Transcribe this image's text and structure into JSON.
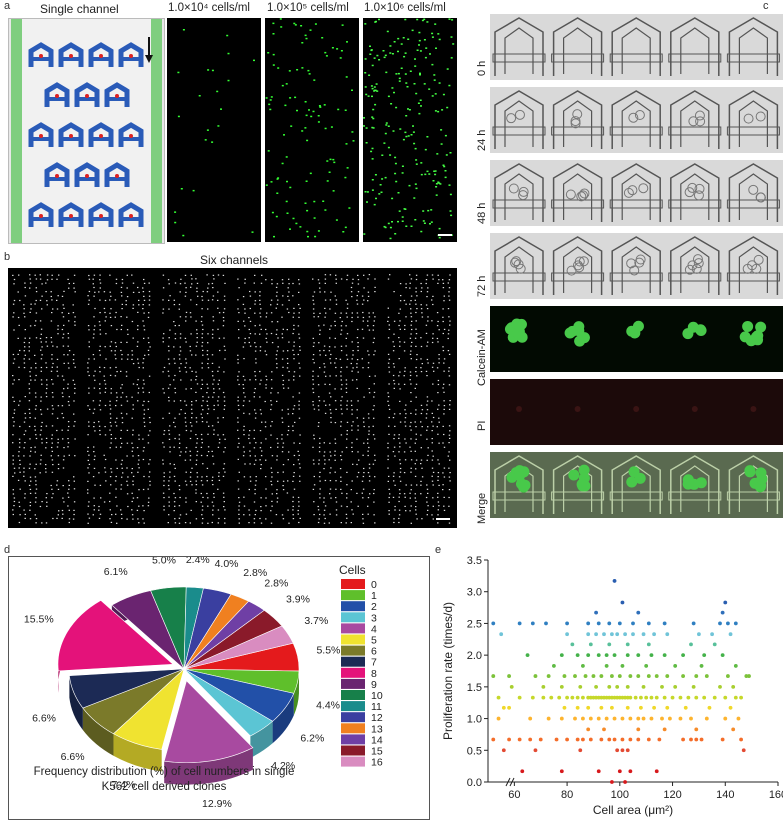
{
  "panel_labels": {
    "a": "a",
    "b": "b",
    "c": "c",
    "d": "d",
    "e": "e"
  },
  "panel_a": {
    "title_single": "Single channel",
    "densities": [
      "1.0×10⁴ cells/ml",
      "1.0×10⁵ cells/ml",
      "1.0×10⁶ cells/ml"
    ]
  },
  "panel_b": {
    "title": "Six channels"
  },
  "panel_c": {
    "rows": [
      "0 h",
      "24 h",
      "48 h",
      "72 h",
      "Calcein-AM",
      "PI",
      "Merge"
    ],
    "colors": {
      "bright": "#d9d9d9",
      "green": "#48c94a",
      "pi": "#1c0a0a",
      "merge_bg": "#5a6a50"
    }
  },
  "chart_data": [
    {
      "type": "pie",
      "caption": "Frequency distribution (%) of cell numbers in single K562 cell derived clones",
      "legend_title": "Cells",
      "categories": [
        "0",
        "1",
        "2",
        "3",
        "4",
        "5",
        "6",
        "7",
        "8",
        "9",
        "10",
        "11",
        "12",
        "13",
        "14",
        "15",
        "16"
      ],
      "values": [
        5.5,
        4.4,
        6.2,
        4.2,
        12.9,
        7.4,
        6.6,
        6.6,
        15.5,
        6.1,
        5.0,
        2.4,
        4.0,
        2.8,
        2.8,
        3.9,
        3.7
      ],
      "labels": [
        "5.5%",
        "4.4%",
        "6.2%",
        "4.2%",
        "12.9%",
        "7.4%",
        "6.6%",
        "6.6%",
        "15.5%",
        "6.1%",
        "5.0%",
        "2.4%",
        "4.0%",
        "2.8%",
        "2.8%",
        "3.9%",
        "3.7%"
      ],
      "colors": [
        "#e41a1c",
        "#5fbf2b",
        "#2250a8",
        "#5bc5d4",
        "#a84aa0",
        "#f0e330",
        "#7b7a2a",
        "#1c2a55",
        "#e4127a",
        "#6a2470",
        "#17804a",
        "#1a8c8c",
        "#3a3fa0",
        "#f08020",
        "#6f3fa5",
        "#8a1a2a",
        "#d98cc0"
      ]
    },
    {
      "type": "scatter",
      "xlabel": "Cell area (μm²)",
      "ylabel": "Proliferation rate (times/d)",
      "xlim": [
        50,
        160
      ],
      "ylim": [
        0,
        3.5
      ],
      "xticks": [
        "60",
        "80",
        "100",
        "120",
        "140",
        "160"
      ],
      "yticks": [
        "0.0",
        "0.5",
        "1.0",
        "1.5",
        "2.0",
        "2.5",
        "3.0",
        "3.5"
      ],
      "level_colors": {
        "0.00": "#d7191c",
        "0.17": "#d7191c",
        "0.50": "#e34a33",
        "0.67": "#f46d2a",
        "0.83": "#f68b29",
        "1.00": "#fdb42f",
        "1.17": "#f0d82a",
        "1.33": "#c6d82a",
        "1.50": "#a8cf2f",
        "1.67": "#7cc23a",
        "1.83": "#5fbb44",
        "2.00": "#44b24a",
        "2.17": "#58c09a",
        "2.33": "#70c4d8",
        "2.50": "#2f7fc1",
        "2.67": "#2f6fba",
        "2.83": "#2a5eb0",
        "3.17": "#2a5eb0"
      },
      "points": [
        [
          97,
          0.0
        ],
        [
          102,
          0.0
        ],
        [
          63,
          0.17
        ],
        [
          78,
          0.17
        ],
        [
          92,
          0.17
        ],
        [
          100,
          0.17
        ],
        [
          104,
          0.17
        ],
        [
          114,
          0.17
        ],
        [
          56,
          0.5
        ],
        [
          68,
          0.5
        ],
        [
          85,
          0.5
        ],
        [
          99,
          0.5
        ],
        [
          101,
          0.5
        ],
        [
          103,
          0.5
        ],
        [
          147,
          0.5
        ],
        [
          52,
          0.67
        ],
        [
          58,
          0.67
        ],
        [
          62,
          0.67
        ],
        [
          66,
          0.67
        ],
        [
          70,
          0.67
        ],
        [
          76,
          0.67
        ],
        [
          80,
          0.67
        ],
        [
          84,
          0.67
        ],
        [
          86,
          0.67
        ],
        [
          89,
          0.67
        ],
        [
          93,
          0.67
        ],
        [
          96,
          0.67
        ],
        [
          98,
          0.67
        ],
        [
          101,
          0.67
        ],
        [
          104,
          0.67
        ],
        [
          107,
          0.67
        ],
        [
          111,
          0.67
        ],
        [
          115,
          0.67
        ],
        [
          124,
          0.67
        ],
        [
          127,
          0.67
        ],
        [
          129,
          0.67
        ],
        [
          131,
          0.67
        ],
        [
          139,
          0.67
        ],
        [
          146,
          0.67
        ],
        [
          88,
          0.83
        ],
        [
          94,
          0.83
        ],
        [
          107,
          0.83
        ],
        [
          117,
          0.83
        ],
        [
          129,
          0.83
        ],
        [
          143,
          0.83
        ],
        [
          54,
          1.0
        ],
        [
          66,
          1.0
        ],
        [
          73,
          1.0
        ],
        [
          78,
          1.0
        ],
        [
          83,
          1.0
        ],
        [
          86,
          1.0
        ],
        [
          89,
          1.0
        ],
        [
          92,
          1.0
        ],
        [
          95,
          1.0
        ],
        [
          98,
          1.0
        ],
        [
          101,
          1.0
        ],
        [
          104,
          1.0
        ],
        [
          107,
          1.0
        ],
        [
          109,
          1.0
        ],
        [
          112,
          1.0
        ],
        [
          116,
          1.0
        ],
        [
          119,
          1.0
        ],
        [
          123,
          1.0
        ],
        [
          127,
          1.0
        ],
        [
          133,
          1.0
        ],
        [
          140,
          1.0
        ],
        [
          145,
          1.0
        ],
        [
          56,
          1.17
        ],
        [
          58,
          1.17
        ],
        [
          79,
          1.17
        ],
        [
          84,
          1.17
        ],
        [
          88,
          1.17
        ],
        [
          93,
          1.17
        ],
        [
          97,
          1.17
        ],
        [
          103,
          1.17
        ],
        [
          108,
          1.17
        ],
        [
          113,
          1.17
        ],
        [
          118,
          1.17
        ],
        [
          125,
          1.17
        ],
        [
          134,
          1.17
        ],
        [
          142,
          1.17
        ],
        [
          54,
          1.33
        ],
        [
          62,
          1.33
        ],
        [
          67,
          1.33
        ],
        [
          71,
          1.33
        ],
        [
          74,
          1.33
        ],
        [
          77,
          1.33
        ],
        [
          80,
          1.33
        ],
        [
          82,
          1.33
        ],
        [
          84,
          1.33
        ],
        [
          86,
          1.33
        ],
        [
          88,
          1.33
        ],
        [
          89,
          1.33
        ],
        [
          90,
          1.33
        ],
        [
          91,
          1.33
        ],
        [
          92,
          1.33
        ],
        [
          93,
          1.33
        ],
        [
          94,
          1.33
        ],
        [
          95,
          1.33
        ],
        [
          96,
          1.33
        ],
        [
          97,
          1.33
        ],
        [
          98,
          1.33
        ],
        [
          99,
          1.33
        ],
        [
          100,
          1.33
        ],
        [
          101,
          1.33
        ],
        [
          102,
          1.33
        ],
        [
          103,
          1.33
        ],
        [
          104,
          1.33
        ],
        [
          106,
          1.33
        ],
        [
          108,
          1.33
        ],
        [
          110,
          1.33
        ],
        [
          112,
          1.33
        ],
        [
          114,
          1.33
        ],
        [
          117,
          1.33
        ],
        [
          120,
          1.33
        ],
        [
          123,
          1.33
        ],
        [
          126,
          1.33
        ],
        [
          129,
          1.33
        ],
        [
          132,
          1.33
        ],
        [
          136,
          1.33
        ],
        [
          140,
          1.33
        ],
        [
          144,
          1.33
        ],
        [
          146,
          1.33
        ],
        [
          59,
          1.5
        ],
        [
          71,
          1.5
        ],
        [
          78,
          1.5
        ],
        [
          85,
          1.5
        ],
        [
          91,
          1.5
        ],
        [
          96,
          1.5
        ],
        [
          99,
          1.5
        ],
        [
          103,
          1.5
        ],
        [
          109,
          1.5
        ],
        [
          116,
          1.5
        ],
        [
          121,
          1.5
        ],
        [
          128,
          1.5
        ],
        [
          138,
          1.5
        ],
        [
          143,
          1.5
        ],
        [
          52,
          1.67
        ],
        [
          58,
          1.67
        ],
        [
          68,
          1.67
        ],
        [
          73,
          1.67
        ],
        [
          79,
          1.67
        ],
        [
          83,
          1.67
        ],
        [
          87,
          1.67
        ],
        [
          90,
          1.67
        ],
        [
          93,
          1.67
        ],
        [
          97,
          1.67
        ],
        [
          100,
          1.67
        ],
        [
          104,
          1.67
        ],
        [
          107,
          1.67
        ],
        [
          111,
          1.67
        ],
        [
          114,
          1.67
        ],
        [
          118,
          1.67
        ],
        [
          124,
          1.67
        ],
        [
          129,
          1.67
        ],
        [
          133,
          1.67
        ],
        [
          141,
          1.67
        ],
        [
          148,
          1.67
        ],
        [
          149,
          1.67
        ],
        [
          75,
          1.83
        ],
        [
          86,
          1.83
        ],
        [
          95,
          1.83
        ],
        [
          101,
          1.83
        ],
        [
          110,
          1.83
        ],
        [
          121,
          1.83
        ],
        [
          131,
          1.83
        ],
        [
          144,
          1.83
        ],
        [
          65,
          2.0
        ],
        [
          78,
          2.0
        ],
        [
          84,
          2.0
        ],
        [
          88,
          2.0
        ],
        [
          92,
          2.0
        ],
        [
          95,
          2.0
        ],
        [
          98,
          2.0
        ],
        [
          103,
          2.0
        ],
        [
          107,
          2.0
        ],
        [
          112,
          2.0
        ],
        [
          117,
          2.0
        ],
        [
          124,
          2.0
        ],
        [
          132,
          2.0
        ],
        [
          139,
          2.0
        ],
        [
          82,
          2.17
        ],
        [
          89,
          2.17
        ],
        [
          96,
          2.17
        ],
        [
          103,
          2.17
        ],
        [
          111,
          2.17
        ],
        [
          127,
          2.17
        ],
        [
          136,
          2.17
        ],
        [
          55,
          2.33
        ],
        [
          80,
          2.33
        ],
        [
          88,
          2.33
        ],
        [
          91,
          2.33
        ],
        [
          94,
          2.33
        ],
        [
          97,
          2.33
        ],
        [
          99,
          2.33
        ],
        [
          102,
          2.33
        ],
        [
          105,
          2.33
        ],
        [
          109,
          2.33
        ],
        [
          113,
          2.33
        ],
        [
          118,
          2.33
        ],
        [
          130,
          2.33
        ],
        [
          135,
          2.33
        ],
        [
          142,
          2.33
        ],
        [
          52,
          2.5
        ],
        [
          62,
          2.5
        ],
        [
          67,
          2.5
        ],
        [
          72,
          2.5
        ],
        [
          80,
          2.5
        ],
        [
          88,
          2.5
        ],
        [
          92,
          2.5
        ],
        [
          96,
          2.5
        ],
        [
          100,
          2.5
        ],
        [
          105,
          2.5
        ],
        [
          111,
          2.5
        ],
        [
          117,
          2.5
        ],
        [
          128,
          2.5
        ],
        [
          138,
          2.5
        ],
        [
          141,
          2.5
        ],
        [
          144,
          2.5
        ],
        [
          91,
          2.67
        ],
        [
          107,
          2.67
        ],
        [
          139,
          2.67
        ],
        [
          101,
          2.83
        ],
        [
          140,
          2.83
        ],
        [
          98,
          3.17
        ]
      ]
    }
  ]
}
